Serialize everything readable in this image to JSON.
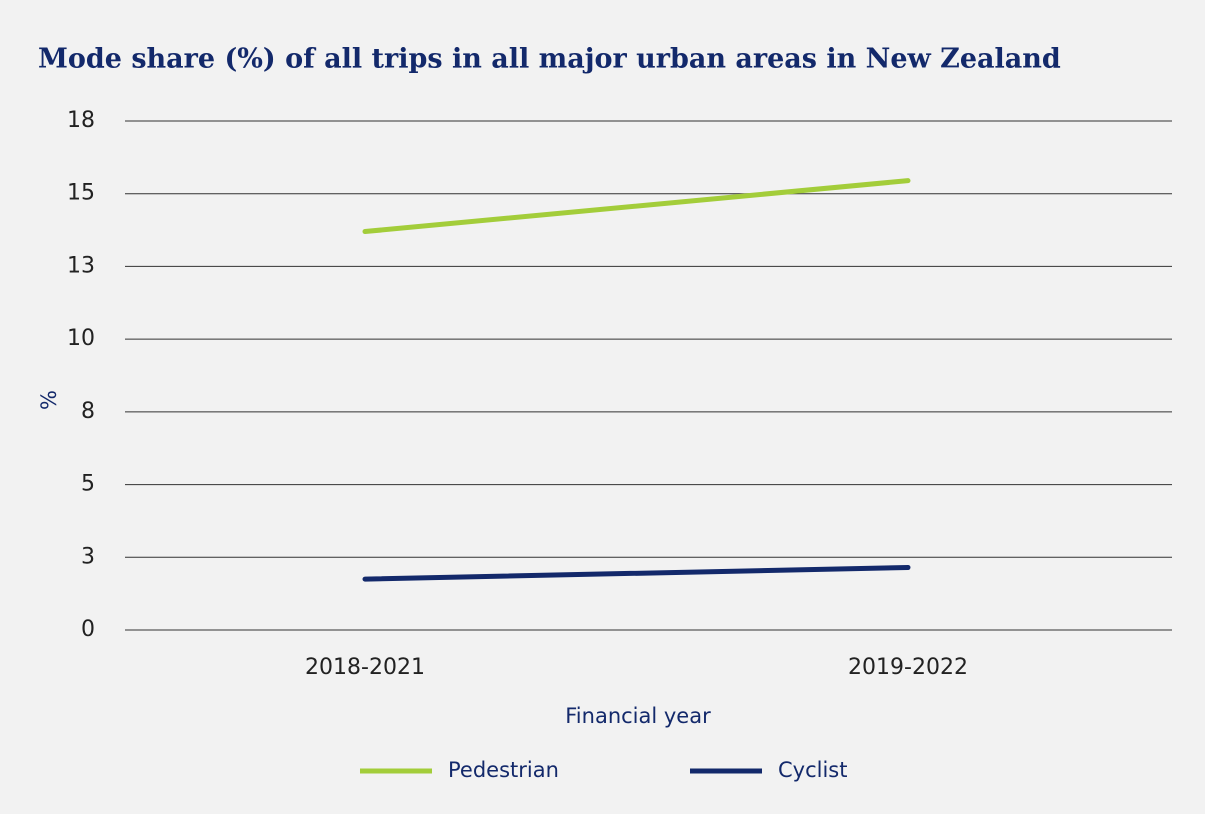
{
  "chart_data": {
    "type": "line",
    "title": "Mode share (%) of all trips in all major urban areas in New Zealand",
    "x_label": "Financial year",
    "y_label": "%",
    "categories": [
      "2018-2021",
      "2019-2022"
    ],
    "series": [
      {
        "name": "Pedestrian",
        "color": "#a3cd3a",
        "values": [
          13.7,
          15.45
        ]
      },
      {
        "name": "Cyclist",
        "color": "#13296b",
        "values": [
          1.75,
          2.15
        ]
      }
    ],
    "ylim": [
      0,
      17.5
    ],
    "yticks": [
      0,
      {
        "value": 2.5,
        "label": "3"
      },
      5,
      {
        "value": 7.5,
        "label": "8"
      },
      10,
      {
        "value": 12.5,
        "label": "13"
      },
      15,
      {
        "value": 17.5,
        "label": "18"
      }
    ],
    "grid": true,
    "legend": "bottom"
  }
}
